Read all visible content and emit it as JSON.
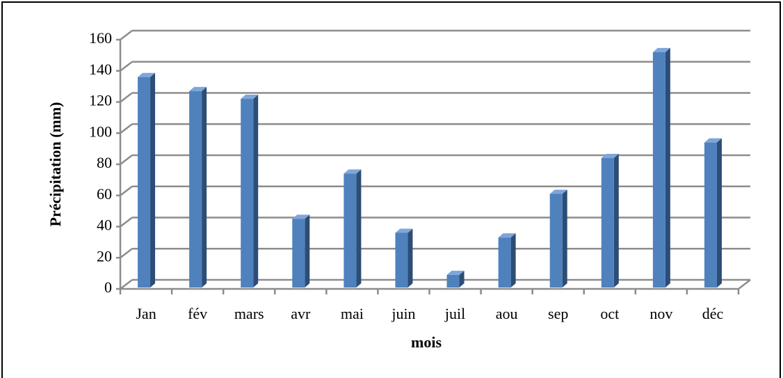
{
  "chart_data": {
    "type": "bar",
    "categories": [
      "Jan",
      "fév",
      "mars",
      "avr",
      "mai",
      "juin",
      "juil",
      "aou",
      "sep",
      "oct",
      "nov",
      "déc"
    ],
    "values": [
      136,
      127,
      122,
      45,
      74,
      36,
      9,
      33,
      61,
      84,
      152,
      94
    ],
    "color": "#4f81bd",
    "x_label": "mois",
    "y_label": "Précipitation  (mm)",
    "ylim": [
      0,
      160
    ],
    "yticks": [
      0,
      20,
      40,
      60,
      80,
      100,
      120,
      140,
      160
    ],
    "grid": true
  }
}
